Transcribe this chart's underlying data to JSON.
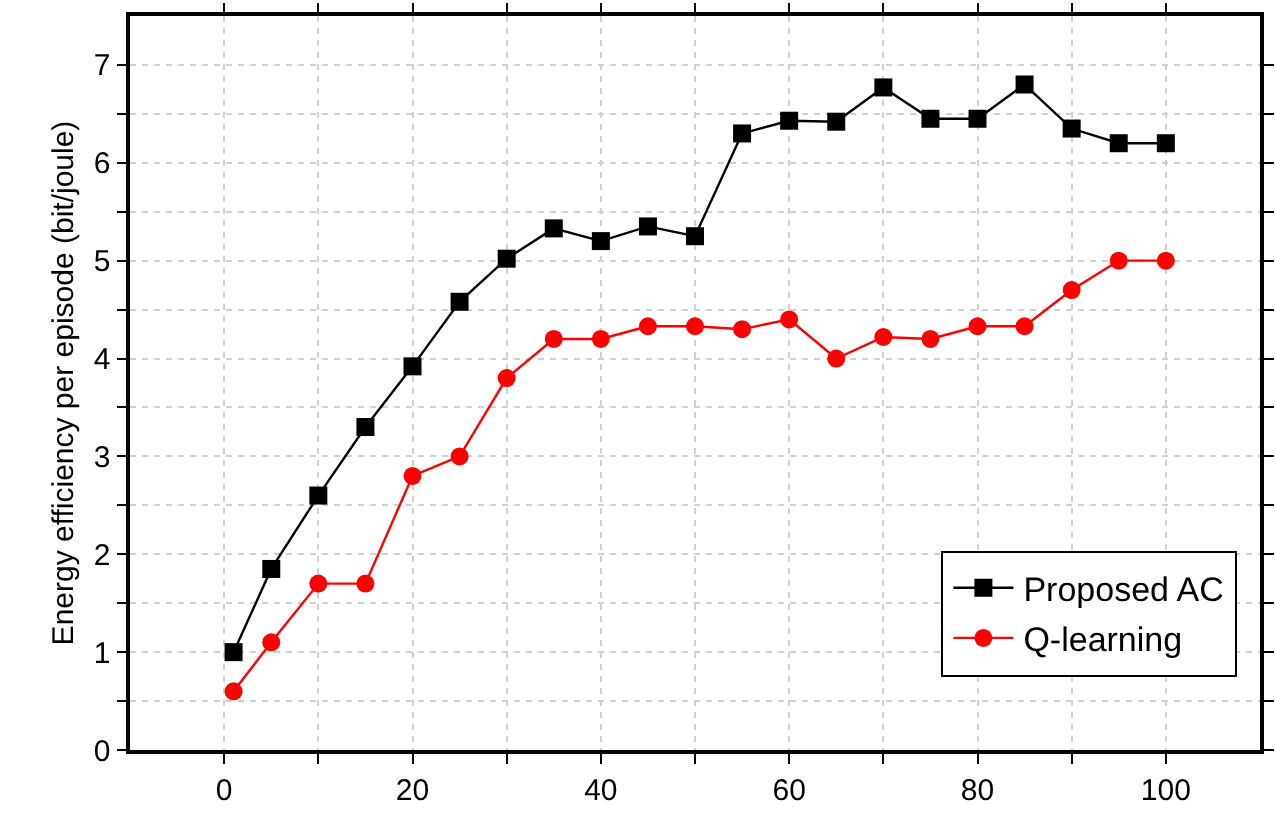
{
  "chart_data": {
    "type": "line",
    "ylabel": "Energy efficiency per episode (bit/joule)",
    "x": [
      1,
      5,
      10,
      15,
      20,
      25,
      30,
      35,
      40,
      45,
      50,
      55,
      60,
      65,
      70,
      75,
      80,
      85,
      90,
      95,
      100
    ],
    "series": [
      {
        "name": "Proposed AC",
        "color": "#000000",
        "marker": "square",
        "values": [
          1.0,
          1.85,
          2.6,
          3.3,
          3.92,
          4.58,
          5.02,
          5.33,
          5.2,
          5.35,
          5.25,
          6.3,
          6.43,
          6.42,
          6.77,
          6.45,
          6.45,
          6.8,
          6.35,
          6.2,
          6.2
        ]
      },
      {
        "name": "Q-learning",
        "color": "#ff0000",
        "marker": "circle",
        "values": [
          0.6,
          1.1,
          1.7,
          1.7,
          2.8,
          3.0,
          3.8,
          4.2,
          4.2,
          4.33,
          4.33,
          4.3,
          4.4,
          4.0,
          4.22,
          4.2,
          4.33,
          4.33,
          4.7,
          5.0,
          5.0
        ]
      }
    ],
    "xlim": [
      -10,
      110
    ],
    "xticks": [
      0,
      {
        "value": 10,
        "label": null
      },
      20,
      {
        "value": 30,
        "label": null
      },
      40,
      {
        "value": 50,
        "label": null
      },
      60,
      {
        "value": 70,
        "label": null
      },
      80,
      {
        "value": 90,
        "label": null
      },
      100
    ],
    "ylim": [
      0,
      7.5
    ],
    "yticks": [
      0,
      {
        "value": 0.5,
        "label": null
      },
      1,
      {
        "value": 1.5,
        "label": null
      },
      2,
      {
        "value": 2.5,
        "label": null
      },
      3,
      {
        "value": 3.5,
        "label": null
      },
      4,
      {
        "value": 4.5,
        "label": null
      },
      5,
      {
        "value": 5.5,
        "label": null
      },
      6,
      {
        "value": 6.5,
        "label": null
      },
      7
    ],
    "grid": true,
    "legend": "bottom right",
    "line_style": "solid"
  }
}
